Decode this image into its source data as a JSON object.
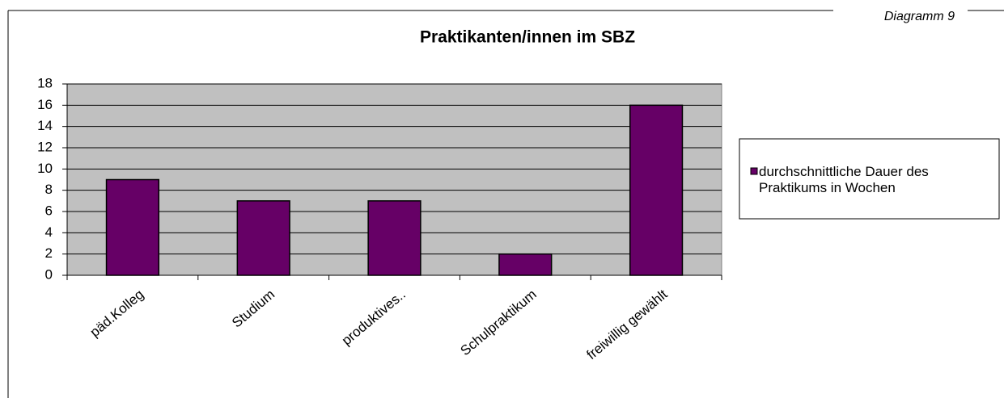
{
  "chart_data": {
    "type": "bar",
    "title": "Praktikanten/innen im SBZ",
    "annotation": "Diagramm 9",
    "categories": [
      "päd.Kolleg",
      "Studium",
      "produktives..",
      "Schulpraktikum",
      "freiwillig gewählt"
    ],
    "series": [
      {
        "name": "durchschnittliche Dauer des Praktikums in Wochen",
        "color": "#660066",
        "values": [
          9,
          7,
          7,
          2,
          16
        ]
      }
    ],
    "ylim": [
      0,
      18
    ],
    "yticks": [
      0,
      2,
      4,
      6,
      8,
      10,
      12,
      14,
      16,
      18
    ],
    "grid": true,
    "legend": "right"
  }
}
